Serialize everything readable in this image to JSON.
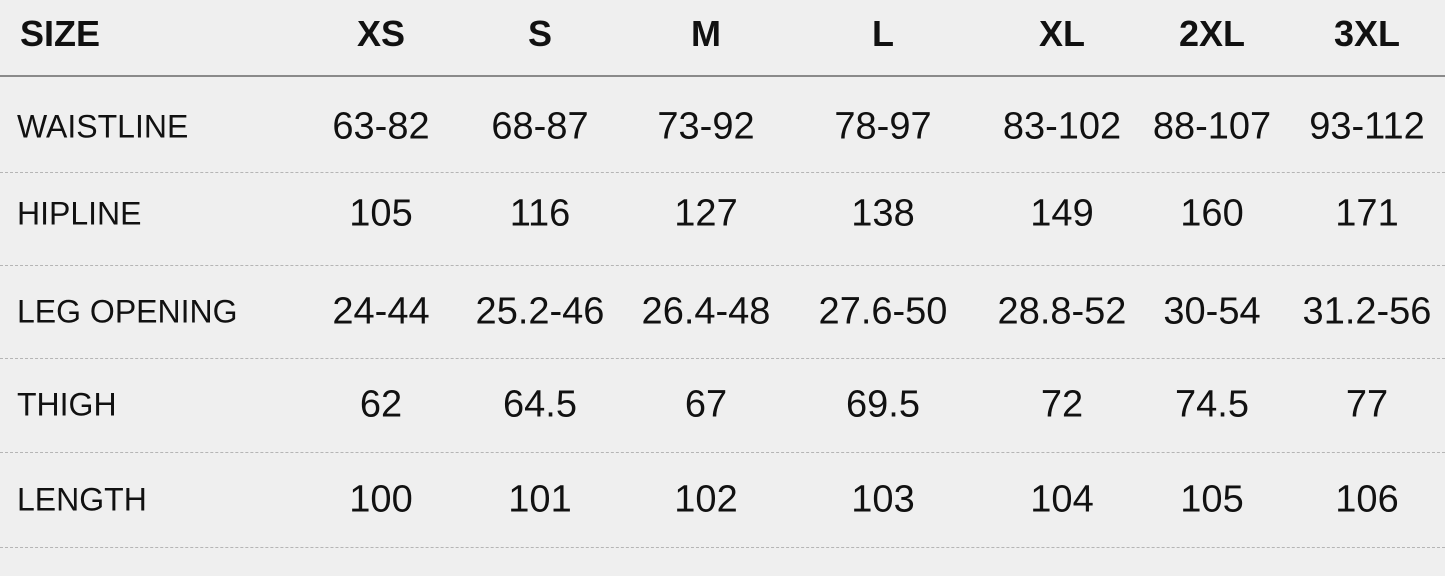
{
  "table": {
    "header": [
      "SIZE",
      "XS",
      "S",
      "M",
      "L",
      "XL",
      "2XL",
      "3XL"
    ],
    "rows": [
      [
        "WAISTLINE",
        "63-82",
        "68-87",
        "73-92",
        "78-97",
        "83-102",
        "88-107",
        "93-112"
      ],
      [
        "HIPLINE",
        "105",
        "116",
        "127",
        "138",
        "149",
        "160",
        "171"
      ],
      [
        "LEG OPENING",
        "24-44",
        "25.2-46",
        "26.4-48",
        "27.6-50",
        "28.8-52",
        "30-54",
        "31.2-56"
      ],
      [
        "THIGH",
        "62",
        "64.5",
        "67",
        "69.5",
        "72",
        "74.5",
        "77"
      ],
      [
        "LENGTH",
        "100",
        "101",
        "102",
        "103",
        "104",
        "105",
        "106"
      ]
    ]
  }
}
